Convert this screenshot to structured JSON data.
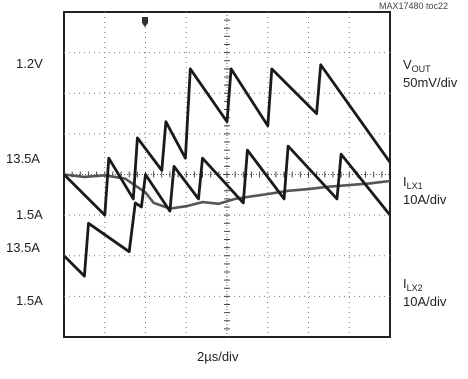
{
  "figure_id": "MAX17480 toc22",
  "chart_data": {
    "type": "line",
    "xlabel": "2µs/div",
    "grid": true,
    "divisions": {
      "x": 8,
      "y": 8
    },
    "left_labels": [
      "1.2V",
      "13.5A",
      "1.5A",
      "13.5A",
      "1.5A"
    ],
    "series": [
      {
        "channel": "V",
        "subscript": "OUT",
        "scale": "50mV/div",
        "reference": "1.2V",
        "ylim": [
          1.0,
          1.4
        ],
        "x": [
          0,
          0.5,
          1,
          1.5,
          2,
          2.2,
          2.6,
          3,
          3.4,
          3.8,
          4.2,
          4.6,
          5,
          5.5,
          6,
          6.5,
          7,
          7.5,
          8
        ],
        "values": [
          1.2,
          1.197,
          1.199,
          1.195,
          1.178,
          1.165,
          1.158,
          1.161,
          1.166,
          1.164,
          1.17,
          1.173,
          1.176,
          1.18,
          1.182,
          1.185,
          1.187,
          1.189,
          1.192
        ]
      },
      {
        "channel": "I",
        "subscript": "LX1",
        "scale": "10A/div",
        "ylim": [
          -18.5,
          21.5
        ],
        "x": [
          0,
          1.0,
          1.1,
          1.7,
          1.8,
          2.4,
          2.5,
          2.98,
          3.1,
          4.0,
          4.1,
          5.0,
          5.1,
          6.2,
          6.3,
          8
        ],
        "values": [
          1.5,
          -3.5,
          3.5,
          -1.5,
          6.0,
          2.0,
          8.0,
          3.5,
          14.5,
          8.0,
          14.5,
          7.5,
          14.5,
          9.0,
          15.0,
          3.0
        ]
      },
      {
        "channel": "I",
        "subscript": "LX2",
        "scale": "10A/div",
        "ylim": [
          -8.5,
          31.5
        ],
        "x": [
          0,
          0.5,
          0.6,
          1.6,
          1.75,
          1.9,
          2.0,
          2.6,
          2.7,
          3.3,
          3.4,
          4.4,
          4.5,
          5.4,
          5.5,
          6.7,
          6.8,
          8
        ],
        "values": [
          1.5,
          -1.0,
          5.5,
          2.0,
          8.0,
          7.5,
          11.5,
          7.0,
          12.5,
          8.5,
          13.5,
          8.0,
          14.5,
          8.5,
          15.0,
          8.5,
          14.0,
          6.5
        ]
      }
    ]
  }
}
